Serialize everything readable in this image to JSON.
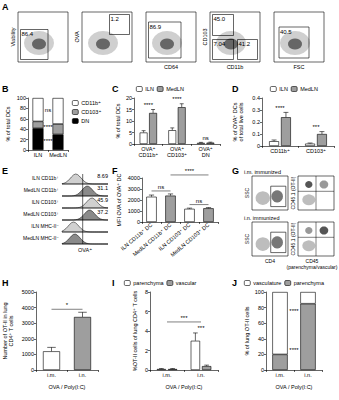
{
  "flow_gating": {
    "title": "A",
    "plots": [
      {
        "y_label": "Viability",
        "gates": [
          "86.4"
        ]
      },
      {
        "y_label": "OVA",
        "gates": [
          "1.2"
        ]
      },
      {
        "x_label": "CD64",
        "gates": [
          "86.9"
        ]
      },
      {
        "y_label": "CD103",
        "x_label": "CD11b",
        "gates": [
          "45.0",
          "7.04",
          "41.2"
        ]
      },
      {
        "x_label": "FSC",
        "gates": [
          "40.5"
        ]
      }
    ]
  },
  "chart_data": [
    {
      "title": "B",
      "type": "bar",
      "stacked": true,
      "legend": "right",
      "categories": [
        "ILN",
        "MedLN"
      ],
      "y_label": "% of total DCs",
      "ylim": [
        0,
        100
      ],
      "yticks": [
        0,
        20,
        40,
        60,
        80,
        100
      ],
      "series": [
        {
          "name": "CD11b⁺",
          "color": "#ffffff",
          "values": [
            45,
            50
          ]
        },
        {
          "name": "CD103⁺",
          "color": "#9e9e9e",
          "values": [
            13,
            20
          ]
        },
        {
          "name": "DN",
          "color": "#000000",
          "values": [
            42,
            30
          ]
        }
      ],
      "annotations": [
        {
          "text": "ns",
          "series": "CD11b⁺"
        },
        {
          "text": "****",
          "series": "CD103⁺"
        },
        {
          "text": "****",
          "series": "DN"
        }
      ]
    },
    {
      "title": "C",
      "type": "bar",
      "legend": "top-left",
      "categories": [
        "OVA⁺\nCD11b⁺",
        "OVA⁺\nCD103⁺",
        "OVA⁺\nDN"
      ],
      "y_label": "% of total DCs",
      "ylim": [
        0,
        20
      ],
      "yticks": [
        0,
        5,
        10,
        15,
        20
      ],
      "series": [
        {
          "name": "ILN",
          "color": "#ffffff",
          "values": [
            5,
            6,
            0.5
          ],
          "errors": [
            0.8,
            1,
            0.2
          ]
        },
        {
          "name": "MedLN",
          "color": "#9e9e9e",
          "values": [
            13.5,
            16,
            0.6
          ],
          "errors": [
            1.5,
            1.5,
            0.2
          ]
        }
      ],
      "annotations": [
        {
          "text": "****",
          "category": 0
        },
        {
          "text": "****",
          "category": 1
        },
        {
          "text": "ns",
          "category": 2
        }
      ]
    },
    {
      "title": "D",
      "type": "bar",
      "legend": "top-left",
      "categories": [
        "CD11b⁺",
        "CD103⁺"
      ],
      "y_label": "% of OVA⁺ DCs\nof total live cells",
      "ylim": [
        0,
        0.4
      ],
      "yticks": [
        0,
        0.1,
        0.2,
        0.3,
        0.4
      ],
      "series": [
        {
          "name": "ILN",
          "color": "#ffffff",
          "values": [
            0.04,
            0.02
          ],
          "errors": [
            0.01,
            0.005
          ]
        },
        {
          "name": "MedLN",
          "color": "#9e9e9e",
          "values": [
            0.24,
            0.1
          ],
          "errors": [
            0.04,
            0.02
          ]
        }
      ],
      "annotations": [
        {
          "text": "****",
          "category": 0
        },
        {
          "text": "***",
          "category": 1
        }
      ]
    },
    {
      "title": "F",
      "type": "bar",
      "categories": [
        "ILN CD11b⁺ DC",
        "MedLN CD11b⁺ DC",
        "ILN CD103⁺ DC",
        "MedLN CD103⁺ DC"
      ],
      "y_label": "MFI OVA of OVA⁺ DC",
      "ylim": [
        0,
        4000
      ],
      "yticks": [
        0,
        1000,
        2000,
        3000,
        4000
      ],
      "values": [
        2300,
        2400,
        1200,
        1250
      ],
      "errors": [
        150,
        150,
        60,
        60
      ],
      "colors": [
        "#ffffff",
        "#9e9e9e",
        "#ffffff",
        "#9e9e9e"
      ],
      "annotations": [
        {
          "text": "ns",
          "between": [
            0,
            1
          ]
        },
        {
          "text": "ns",
          "between": [
            2,
            3
          ]
        },
        {
          "text": "****",
          "between": [
            1,
            3
          ]
        }
      ]
    },
    {
      "title": "H",
      "type": "bar",
      "categories": [
        "i.m.",
        "i.n."
      ],
      "x_label": "OVA / Poly(I:C)",
      "y_label": "Number of OT-II in lung\nCD4⁺ T cells",
      "ylim": [
        0,
        5000
      ],
      "yticks": [
        0,
        1000,
        2000,
        3000,
        4000,
        5000
      ],
      "values": [
        1200,
        3400
      ],
      "errors": [
        250,
        300
      ],
      "colors": [
        "#ffffff",
        "#9e9e9e"
      ],
      "annotations": [
        {
          "text": "*",
          "between": [
            0,
            1
          ]
        }
      ]
    },
    {
      "title": "I",
      "type": "bar",
      "legend": "top-left",
      "categories": [
        "i.m.",
        "i.n."
      ],
      "x_label": "OVA / Poly(I:C)",
      "y_label": "%OT-II cells of lung CD4⁺ T cells",
      "ylim": [
        0,
        8
      ],
      "yticks": [
        0,
        2,
        4,
        6,
        8
      ],
      "series": [
        {
          "name": "parenchyma",
          "color": "#ffffff",
          "values": [
            0.1,
            3.0
          ],
          "errors": [
            0.05,
            0.8
          ]
        },
        {
          "name": "vascular",
          "color": "#9e9e9e",
          "values": [
            0.1,
            0.4
          ],
          "errors": [
            0.05,
            0.1
          ]
        }
      ],
      "annotations": [
        {
          "text": "***",
          "category": 1
        },
        {
          "text": "***",
          "between": [
            0,
            1
          ]
        }
      ]
    },
    {
      "title": "J",
      "type": "bar",
      "stacked": true,
      "legend": "top",
      "categories": [
        "i.m.",
        "i.n."
      ],
      "x_label": "OVA / Poly(I:C)",
      "y_label": "% of lung OT-II cells",
      "ylim": [
        0,
        100
      ],
      "yticks": [
        0,
        20,
        40,
        60,
        80,
        100
      ],
      "series": [
        {
          "name": "vasculature",
          "color": "#ffffff",
          "values": [
            80,
            15
          ]
        },
        {
          "name": "parenchyma",
          "color": "#9e9e9e",
          "values": [
            20,
            85
          ]
        }
      ],
      "annotations": [
        {
          "text": "****",
          "series": "vasculature"
        },
        {
          "text": "****",
          "series": "parenchyma"
        }
      ]
    }
  ],
  "ova_histograms": {
    "title": "E",
    "x_label": "OVA⁺",
    "rows": [
      {
        "label": "ILN CD11b⁺",
        "percent": "8.69"
      },
      {
        "label": "MedLN CD11b⁺",
        "percent": "31.1"
      },
      {
        "label": "ILN CD103⁺",
        "percent": "45.9"
      },
      {
        "label": "MedLN CD103⁺",
        "percent": "37.2"
      },
      {
        "label": "ILN MHC-II⁻"
      },
      {
        "label": "MedLN MHC-II⁻"
      }
    ]
  },
  "lung_flow": {
    "title": "G",
    "rows": [
      "i.m. immunized",
      "i.n. immunized"
    ],
    "left_x_label": "CD4",
    "left_y_label": "SSC",
    "right_x_label": "CD45\n(parenchyma/vascular)",
    "right_y_label": "CD45.1 (OT-II)"
  }
}
